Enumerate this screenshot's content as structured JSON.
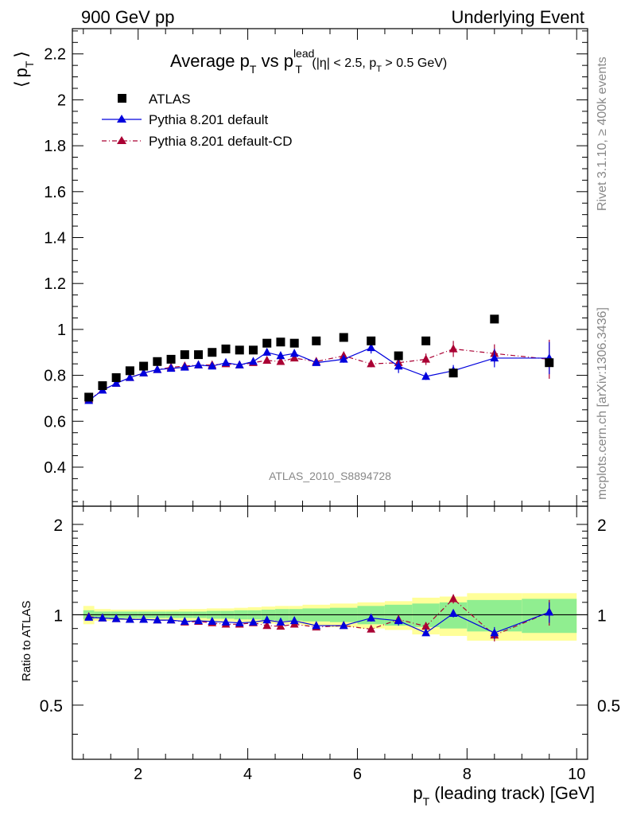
{
  "header": {
    "left": "900 GeV pp",
    "right": "Underlying Event"
  },
  "side_labels": {
    "rivet": "Rivet 3.1.10, ≥ 400k events",
    "mcplots": "mcplots.cern.ch [arXiv:1306.3436]"
  },
  "analysis_id": "ATLAS_2010_S8894728",
  "colors": {
    "data": "#000000",
    "default": "#0000dd",
    "cd": "#aa0033",
    "band_inner": "#90ee90",
    "band_outer": "#ffff99"
  },
  "chart_data": [
    {
      "type": "scatter",
      "panel": "main",
      "title": "Average p_T vs p_T^lead (|η| < 2.5, p_T > 0.5 GeV)",
      "title_parts": {
        "a": "Average p",
        "b": "T",
        "c": " vs p",
        "d": "lead",
        "e": "T",
        "f": " (|η| < 2.5, p",
        "g": "T",
        "h": " > 0.5 GeV)"
      },
      "ylabel": "⟨ p_T ⟩",
      "ylabel_parts": {
        "open": "⟨",
        "p": "p",
        "sub": "T",
        "close": "⟩"
      },
      "xlabel": "p_T (leading track) [GeV]",
      "xlabel_parts": {
        "p": "p",
        "sub": "T",
        "rest": " (leading track) [GeV]"
      },
      "xlim": [
        0.8,
        10.2
      ],
      "ylim": [
        0.23,
        2.31
      ],
      "x_ticks": [
        2,
        4,
        6,
        8,
        10
      ],
      "x_tick_labels": [
        "2",
        "4",
        "6",
        "8",
        "10"
      ],
      "y_ticks": [
        0.4,
        0.6,
        0.8,
        1.0,
        1.2,
        1.4,
        1.6,
        1.8,
        2.0,
        2.2
      ],
      "y_tick_labels": [
        "0.4",
        "0.6",
        "0.8",
        "1",
        "1.2",
        "1.4",
        "1.6",
        "1.8",
        "2",
        "2.2"
      ],
      "legend_position": "top-left",
      "series": [
        {
          "name": "ATLAS",
          "marker": "square",
          "x": [
            1.1,
            1.35,
            1.6,
            1.85,
            2.1,
            2.35,
            2.6,
            2.85,
            3.1,
            3.35,
            3.6,
            3.85,
            4.1,
            4.35,
            4.6,
            4.85,
            5.25,
            5.75,
            6.25,
            6.75,
            7.25,
            7.75,
            8.5,
            9.5
          ],
          "y": [
            0.705,
            0.755,
            0.79,
            0.82,
            0.84,
            0.86,
            0.87,
            0.89,
            0.89,
            0.9,
            0.915,
            0.91,
            0.91,
            0.94,
            0.945,
            0.94,
            0.95,
            0.965,
            0.95,
            0.885,
            0.95,
            0.81,
            1.045,
            0.855
          ]
        },
        {
          "name": "Pythia 8.201 default",
          "marker": "triangle",
          "line": "solid",
          "x": [
            1.1,
            1.35,
            1.6,
            1.85,
            2.1,
            2.35,
            2.6,
            2.85,
            3.1,
            3.35,
            3.6,
            3.85,
            4.1,
            4.35,
            4.6,
            4.85,
            5.25,
            5.75,
            6.25,
            6.75,
            7.25,
            7.75,
            8.5,
            9.5
          ],
          "y": [
            0.69,
            0.735,
            0.765,
            0.79,
            0.81,
            0.825,
            0.83,
            0.835,
            0.845,
            0.84,
            0.855,
            0.845,
            0.86,
            0.9,
            0.885,
            0.895,
            0.855,
            0.87,
            0.92,
            0.84,
            0.795,
            0.82,
            0.875,
            0.875
          ],
          "err": [
            0.004,
            0.004,
            0.004,
            0.004,
            0.004,
            0.004,
            0.004,
            0.005,
            0.005,
            0.005,
            0.006,
            0.006,
            0.007,
            0.012,
            0.012,
            0.015,
            0.01,
            0.015,
            0.025,
            0.03,
            0.015,
            0.025,
            0.04,
            0.07
          ]
        },
        {
          "name": "Pythia 8.201 default-CD",
          "marker": "triangle",
          "line": "dash-dot",
          "x": [
            1.1,
            1.35,
            1.6,
            1.85,
            2.1,
            2.35,
            2.6,
            2.85,
            3.1,
            3.35,
            3.6,
            3.85,
            4.1,
            4.35,
            4.6,
            4.85,
            5.25,
            5.75,
            6.25,
            6.75,
            7.25,
            7.75,
            8.5,
            9.5
          ],
          "y": [
            0.695,
            0.735,
            0.765,
            0.79,
            0.81,
            0.825,
            0.835,
            0.84,
            0.845,
            0.845,
            0.85,
            0.845,
            0.855,
            0.865,
            0.86,
            0.875,
            0.86,
            0.885,
            0.85,
            0.855,
            0.87,
            0.915,
            0.895,
            0.87
          ],
          "err": [
            0.004,
            0.004,
            0.004,
            0.004,
            0.004,
            0.004,
            0.004,
            0.005,
            0.005,
            0.005,
            0.006,
            0.006,
            0.007,
            0.01,
            0.01,
            0.012,
            0.01,
            0.015,
            0.015,
            0.02,
            0.025,
            0.035,
            0.04,
            0.085
          ]
        }
      ]
    },
    {
      "type": "scatter",
      "panel": "ratio",
      "ylabel": "Ratio to ATLAS",
      "scale": "log",
      "ylim": [
        0.33,
        2.3
      ],
      "y_ticks": [
        0.5,
        1,
        2
      ],
      "y_tick_labels": [
        "0.5",
        "1",
        "2"
      ],
      "reference_line": 1,
      "bins": [
        [
          1.0,
          1.2
        ],
        [
          1.2,
          1.5
        ],
        [
          1.5,
          1.75
        ],
        [
          1.75,
          2.0
        ],
        [
          2.0,
          2.25
        ],
        [
          2.25,
          2.5
        ],
        [
          2.5,
          2.75
        ],
        [
          2.75,
          3.0
        ],
        [
          3.0,
          3.25
        ],
        [
          3.25,
          3.5
        ],
        [
          3.5,
          3.75
        ],
        [
          3.75,
          4.0
        ],
        [
          4.0,
          4.25
        ],
        [
          4.25,
          4.5
        ],
        [
          4.5,
          4.75
        ],
        [
          4.75,
          5.0
        ],
        [
          5.0,
          5.5
        ],
        [
          5.5,
          6.0
        ],
        [
          6.0,
          6.5
        ],
        [
          6.5,
          7.0
        ],
        [
          7.0,
          7.5
        ],
        [
          7.5,
          8.0
        ],
        [
          8.0,
          9.0
        ],
        [
          9.0,
          10.0
        ]
      ],
      "band_inner": [
        0.035,
        0.025,
        0.025,
        0.025,
        0.025,
        0.025,
        0.025,
        0.025,
        0.025,
        0.03,
        0.03,
        0.035,
        0.035,
        0.04,
        0.045,
        0.045,
        0.05,
        0.055,
        0.07,
        0.08,
        0.09,
        0.1,
        0.12,
        0.13
      ],
      "band_outer": [
        0.07,
        0.045,
        0.04,
        0.04,
        0.04,
        0.04,
        0.04,
        0.045,
        0.045,
        0.05,
        0.05,
        0.055,
        0.06,
        0.065,
        0.07,
        0.07,
        0.08,
        0.09,
        0.1,
        0.11,
        0.14,
        0.15,
        0.18,
        0.18
      ],
      "series": [
        {
          "name": "Pythia 8.201 default",
          "x": [
            1.1,
            1.35,
            1.6,
            1.85,
            2.1,
            2.35,
            2.6,
            2.85,
            3.1,
            3.35,
            3.6,
            3.85,
            4.1,
            4.35,
            4.6,
            4.85,
            5.25,
            5.75,
            6.25,
            6.75,
            7.25,
            7.75,
            8.5,
            9.5
          ],
          "y": [
            0.98,
            0.975,
            0.97,
            0.965,
            0.965,
            0.96,
            0.96,
            0.95,
            0.955,
            0.95,
            0.945,
            0.94,
            0.945,
            0.96,
            0.945,
            0.955,
            0.92,
            0.92,
            0.975,
            0.955,
            0.87,
            1.01,
            0.87,
            1.02
          ],
          "err": [
            0.006,
            0.006,
            0.006,
            0.006,
            0.006,
            0.006,
            0.006,
            0.006,
            0.006,
            0.006,
            0.008,
            0.008,
            0.008,
            0.013,
            0.013,
            0.016,
            0.012,
            0.016,
            0.026,
            0.035,
            0.018,
            0.03,
            0.04,
            0.08
          ]
        },
        {
          "name": "Pythia 8.201 default-CD",
          "x": [
            1.1,
            1.35,
            1.6,
            1.85,
            2.1,
            2.35,
            2.6,
            2.85,
            3.1,
            3.35,
            3.6,
            3.85,
            4.1,
            4.35,
            4.6,
            4.85,
            5.25,
            5.75,
            6.25,
            6.75,
            7.25,
            7.75,
            8.5,
            9.5
          ],
          "y": [
            0.985,
            0.975,
            0.97,
            0.965,
            0.965,
            0.96,
            0.96,
            0.945,
            0.95,
            0.94,
            0.93,
            0.93,
            0.94,
            0.92,
            0.915,
            0.93,
            0.91,
            0.92,
            0.895,
            0.965,
            0.915,
            1.13,
            0.855,
            1.02
          ],
          "err": [
            0.006,
            0.006,
            0.006,
            0.006,
            0.006,
            0.006,
            0.006,
            0.006,
            0.006,
            0.006,
            0.008,
            0.008,
            0.008,
            0.011,
            0.011,
            0.013,
            0.012,
            0.016,
            0.018,
            0.023,
            0.028,
            0.04,
            0.04,
            0.1
          ]
        }
      ]
    }
  ]
}
